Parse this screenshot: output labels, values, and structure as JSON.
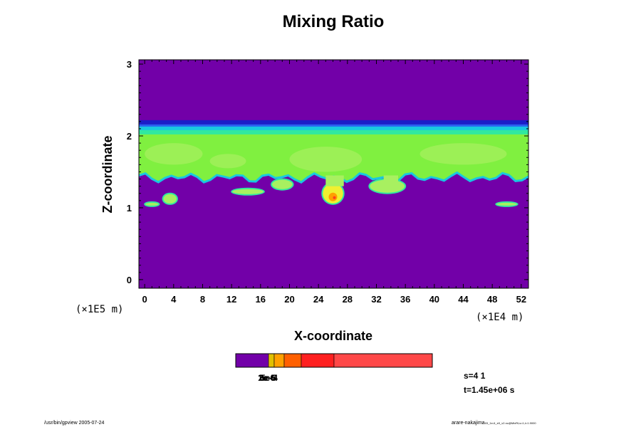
{
  "chart_data": {
    "type": "heatmap",
    "title": "Mixing Ratio",
    "xlabel": "X-coordinate",
    "ylabel": "Z-coordinate",
    "x_unit": "(×1E4 m)",
    "y_unit": "(×1E5 m)",
    "xlim": [
      -0.8,
      53
    ],
    "ylim": [
      -0.12,
      3.06
    ],
    "x_ticks": [
      "0",
      "4",
      "8",
      "12",
      "16",
      "20",
      "24",
      "28",
      "32",
      "36",
      "40",
      "44",
      "48",
      "52"
    ],
    "x_tick_values": [
      0,
      4,
      8,
      12,
      16,
      20,
      24,
      28,
      32,
      36,
      40,
      44,
      48,
      52
    ],
    "y_ticks": [
      "0",
      "1",
      "2",
      "3"
    ],
    "y_tick_values": [
      0,
      1,
      2,
      3
    ],
    "background_color": "#7200a8",
    "layer": {
      "top": 2.18,
      "bottom": 1.42,
      "colors": {
        "deep_blue": "#1c1cc8",
        "blue": "#2a60f0",
        "cyan": "#18c8e0",
        "teal": "#30e8a0",
        "green": "#80f040",
        "light_green": "#a8f060",
        "yellow": "#f0f030",
        "orange": "#ffa000",
        "red": "#ff4020"
      }
    },
    "cells": [
      {
        "x": [
          0,
          2
        ],
        "z": [
          1.02,
          1.08
        ],
        "color": "#a8f060"
      },
      {
        "x": [
          2.5,
          4.5
        ],
        "z": [
          1.05,
          1.2
        ],
        "color": "#a8f060"
      },
      {
        "x": [
          12,
          16.5
        ],
        "z": [
          1.18,
          1.27
        ],
        "color": "#a8f060"
      },
      {
        "x": [
          17.5,
          20.5
        ],
        "z": [
          1.25,
          1.4
        ],
        "color": "#a8f060"
      },
      {
        "x": [
          24.5,
          27.5
        ],
        "z": [
          1.05,
          1.35
        ],
        "color": "#f0f030"
      },
      {
        "x": [
          31,
          36
        ],
        "z": [
          1.2,
          1.4
        ],
        "color": "#a8f060"
      },
      {
        "x": [
          48.5,
          51.5
        ],
        "z": [
          1.02,
          1.08
        ],
        "color": "#a8f060"
      }
    ],
    "colorbar": {
      "colors": [
        "#7200a8",
        "#e0c000",
        "#ffa000",
        "#ff6000",
        "#ff2020",
        "#ff4848",
        "#ff9c9c"
      ],
      "widths": [
        46,
        8,
        14,
        24,
        46,
        138
      ],
      "labels": [
        "1e-6",
        "2e-5",
        "3e-5",
        "5e-4"
      ]
    }
  },
  "info": {
    "s": "s=4 1",
    "t": "t=1.45e+06 s"
  },
  "footer": {
    "left": "/usr/bin/gpview 2005-07-24",
    "right_main": "arare-nakajima",
    "right_small": "03_1e-6_e0_v2.nc@MixRt,s=1,t=1.9000"
  }
}
